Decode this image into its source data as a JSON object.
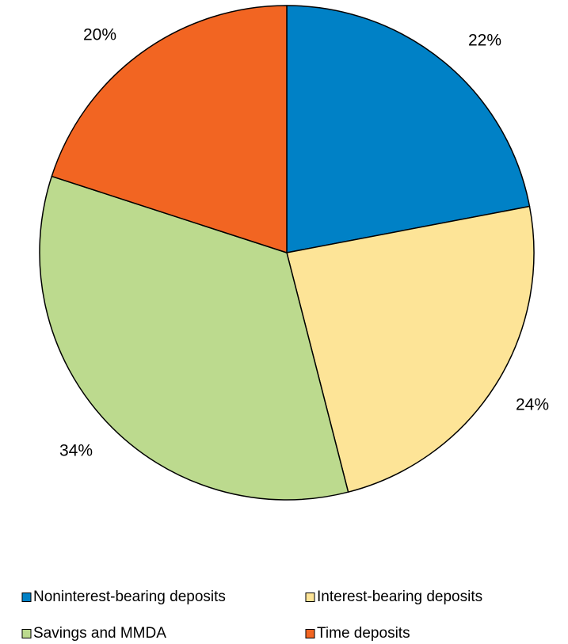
{
  "chart_data": {
    "type": "pie",
    "title": "",
    "slices": [
      {
        "name": "Noninterest-bearing deposits",
        "value": 22,
        "label": "22%",
        "color": "#0081C6"
      },
      {
        "name": "Interest-bearing deposits",
        "value": 24,
        "label": "24%",
        "color": "#FDE497"
      },
      {
        "name": "Savings and MMDA",
        "value": 34,
        "label": "34%",
        "color": "#BCDA8E"
      },
      {
        "name": "Time deposits",
        "value": 20,
        "label": "20%",
        "color": "#F26522"
      }
    ],
    "start_angle_deg": 0,
    "direction": "clockwise",
    "legend_placement": "bottom",
    "slice_border_color": "#000000"
  }
}
